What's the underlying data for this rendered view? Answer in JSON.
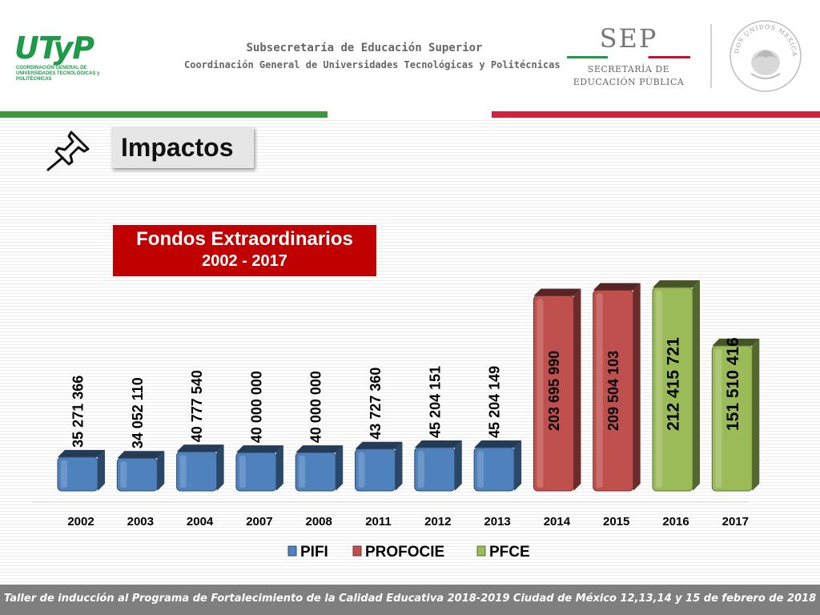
{
  "header": {
    "logo_text": "UTyP",
    "logo_subtitle": "COORDINACIÓN GENERAL DE UNIVERSIDADES TECNOLÓGICAS y POLITÉCNICAS",
    "line1": "Subsecretaría de Educación Superior",
    "line2": "Coordinación General de Universidades Tecnológicas y Politécnicas",
    "sep_word": "SEP",
    "sep_line1": "SECRETARÍA DE",
    "sep_line2": "EDUCACIÓN PÚBLICA",
    "seal_text": "ESTADOS UNIDOS MEXICANOS"
  },
  "slide": {
    "title": "Impactos",
    "box_title": "Fondos Extraordinarios",
    "box_subtitle": "2002 - 2017"
  },
  "footer": {
    "text": "Taller de inducción al Programa de Fortalecimiento de la Calidad Educativa 2018-2019 Ciudad de México 12,13,14 y 15 de febrero de 2018"
  },
  "colors": {
    "PIFI": "#4f81bd",
    "PROFOCIE": "#c0504d",
    "PFCE": "#9bbb59",
    "title_box_bg": "#c00000"
  },
  "chart_data": {
    "type": "bar",
    "categories": [
      "2002",
      "2003",
      "2004",
      "2007",
      "2008",
      "2011",
      "2012",
      "2013",
      "2014",
      "2015",
      "2016",
      "2017"
    ],
    "values": [
      35271366,
      34052110,
      40777540,
      40000000,
      40000000,
      43727360,
      45204151,
      45204149,
      203695990,
      209504103,
      212415721,
      151510416
    ],
    "value_labels": [
      "35 271 366",
      "34 052 110",
      "40 777 540",
      "40 000 000",
      "40 000 000",
      "43 727 360",
      "45 204 151",
      "45 204 149",
      "203 695 990",
      "209 504 103",
      "212 415 721",
      "151 510 416"
    ],
    "program": [
      "PIFI",
      "PIFI",
      "PIFI",
      "PIFI",
      "PIFI",
      "PIFI",
      "PIFI",
      "PIFI",
      "PROFOCIE",
      "PROFOCIE",
      "PFCE",
      "PFCE"
    ],
    "legend": [
      "PIFI",
      "PROFOCIE",
      "PFCE"
    ],
    "legend_position": "bottom",
    "ylim": [
      0,
      230000000
    ],
    "grid": false,
    "style": "3d-cylinder-like boxes, vertical value labels"
  }
}
